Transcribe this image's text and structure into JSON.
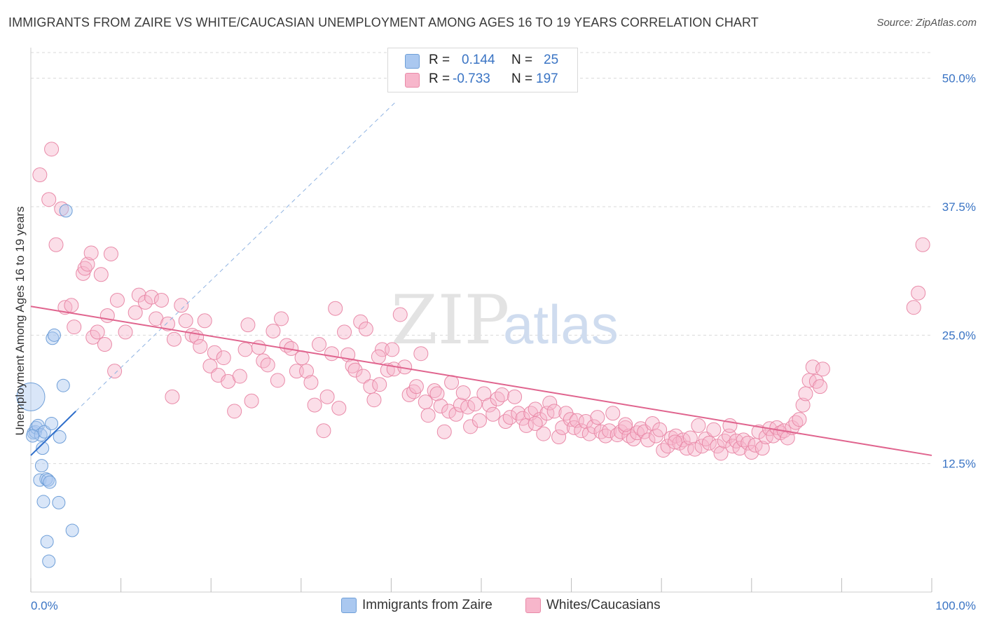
{
  "title": "IMMIGRANTS FROM ZAIRE VS WHITE/CAUCASIAN UNEMPLOYMENT AMONG AGES 16 TO 19 YEARS CORRELATION CHART",
  "source": "Source: ZipAtlas.com",
  "watermark": {
    "zip": "ZIP",
    "atlas": "atlas"
  },
  "legend": {
    "rows": [
      {
        "r_label": "R =",
        "r_value": "0.144",
        "n_label": "N =",
        "n_value": "25",
        "color": "#aac8f0"
      },
      {
        "r_label": "R =",
        "r_value": "-0.733",
        "n_label": "N =",
        "n_value": "197",
        "color": "#f7b6cb"
      }
    ]
  },
  "bottom_legend": [
    {
      "label": "Immigrants from Zaire",
      "color": "#aac8f0"
    },
    {
      "label": "Whites/Caucasians",
      "color": "#f7b6cb"
    }
  ],
  "colors": {
    "blue_fill": "#aac8f0",
    "blue_stroke": "#6f9fd8",
    "blue_line": "#2f6fcb",
    "pink_fill": "#f7b6cb",
    "pink_stroke": "#e98aa8",
    "pink_line": "#e0648e",
    "tick_label": "#3a74c4",
    "grid": "#d9d9d9"
  },
  "chart_data": {
    "type": "scatter",
    "title": "IMMIGRANTS FROM ZAIRE VS WHITE/CAUCASIAN UNEMPLOYMENT AMONG AGES 16 TO 19 YEARS CORRELATION CHART",
    "xlabel": "",
    "ylabel": "Unemployment Among Ages 16 to 19 years",
    "xlim": [
      0,
      100
    ],
    "ylim": [
      0,
      52.5
    ],
    "x_tick_labels": [
      "0.0%",
      "100.0%"
    ],
    "y_ticks": [
      12.5,
      25.0,
      37.5,
      50.0
    ],
    "y_tick_labels": [
      "12.5%",
      "25.0%",
      "37.5%",
      "50.0%"
    ],
    "grid": true,
    "series": [
      {
        "name": "Immigrants from Zaire",
        "r": 0.144,
        "n": 25,
        "trend": {
          "x0": 0,
          "y0": 13.3,
          "x1": 5,
          "y1": 17.6,
          "extended_x1": 40.5,
          "extended_y1": 47.7
        },
        "points": [
          [
            0.0,
            19.0,
            20
          ],
          [
            0.3,
            15.5,
            9
          ],
          [
            0.5,
            15.6,
            9
          ],
          [
            0.6,
            16.0,
            9
          ],
          [
            0.8,
            16.2,
            9
          ],
          [
            1.0,
            10.9,
            9
          ],
          [
            1.1,
            15.3,
            9
          ],
          [
            1.2,
            12.3,
            9
          ],
          [
            1.3,
            14.0,
            9
          ],
          [
            1.4,
            8.8,
            9
          ],
          [
            1.5,
            15.6,
            9
          ],
          [
            1.7,
            11.0,
            9
          ],
          [
            1.8,
            4.9,
            9
          ],
          [
            1.9,
            10.9,
            9
          ],
          [
            2.0,
            3.0,
            9
          ],
          [
            2.1,
            10.7,
            9
          ],
          [
            2.3,
            16.4,
            9
          ],
          [
            2.4,
            24.7,
            9
          ],
          [
            2.6,
            25.0,
            9
          ],
          [
            3.1,
            8.7,
            9
          ],
          [
            3.2,
            15.1,
            9
          ],
          [
            3.6,
            20.1,
            9
          ],
          [
            3.9,
            37.1,
            9
          ],
          [
            4.6,
            6.0,
            9
          ],
          [
            0.2,
            15.2,
            9
          ]
        ]
      },
      {
        "name": "Whites/Caucasians",
        "r": -0.733,
        "n": 197,
        "trend": {
          "x0": 0,
          "y0": 27.8,
          "x1": 100,
          "y1": 13.3
        },
        "points": [
          [
            1.0,
            40.6
          ],
          [
            2.0,
            38.2
          ],
          [
            2.3,
            43.1
          ],
          [
            2.8,
            33.8
          ],
          [
            3.4,
            37.3
          ],
          [
            3.8,
            27.7
          ],
          [
            4.5,
            27.9
          ],
          [
            4.8,
            25.8
          ],
          [
            5.8,
            31.0
          ],
          [
            6.0,
            31.5
          ],
          [
            6.3,
            31.9
          ],
          [
            6.7,
            33.0
          ],
          [
            6.9,
            24.8
          ],
          [
            7.4,
            25.3
          ],
          [
            7.8,
            30.9
          ],
          [
            8.2,
            24.1
          ],
          [
            8.5,
            26.9
          ],
          [
            8.9,
            32.9
          ],
          [
            9.3,
            21.5
          ],
          [
            9.6,
            28.4
          ],
          [
            10.5,
            25.3
          ],
          [
            11.6,
            27.2
          ],
          [
            12.0,
            28.9
          ],
          [
            12.7,
            28.2
          ],
          [
            13.4,
            28.7
          ],
          [
            13.9,
            26.6
          ],
          [
            14.5,
            28.4
          ],
          [
            15.2,
            26.1
          ],
          [
            15.7,
            19.0
          ],
          [
            15.9,
            24.6
          ],
          [
            16.7,
            27.9
          ],
          [
            17.2,
            26.4
          ],
          [
            17.9,
            25.0
          ],
          [
            18.4,
            24.8
          ],
          [
            18.8,
            23.9
          ],
          [
            19.3,
            26.4
          ],
          [
            19.9,
            22.0
          ],
          [
            20.4,
            23.3
          ],
          [
            20.8,
            21.1
          ],
          [
            21.4,
            22.8
          ],
          [
            21.9,
            20.5
          ],
          [
            22.6,
            17.6
          ],
          [
            23.2,
            21.0
          ],
          [
            23.8,
            23.6
          ],
          [
            24.1,
            26.0
          ],
          [
            24.5,
            18.6
          ],
          [
            25.3,
            23.8
          ],
          [
            25.8,
            22.5
          ],
          [
            26.3,
            22.1
          ],
          [
            26.9,
            25.4
          ],
          [
            27.4,
            20.6
          ],
          [
            27.8,
            26.6
          ],
          [
            28.4,
            24.0
          ],
          [
            28.9,
            23.7
          ],
          [
            29.5,
            21.5
          ],
          [
            30.1,
            22.8
          ],
          [
            30.6,
            21.5
          ],
          [
            31.1,
            20.4
          ],
          [
            31.5,
            18.2
          ],
          [
            32.0,
            24.1
          ],
          [
            32.5,
            15.7
          ],
          [
            32.9,
            19.0
          ],
          [
            33.4,
            23.2
          ],
          [
            33.8,
            27.6
          ],
          [
            34.2,
            17.9
          ],
          [
            34.8,
            25.3
          ],
          [
            35.2,
            23.1
          ],
          [
            35.7,
            22.0
          ],
          [
            36.0,
            21.6
          ],
          [
            36.6,
            26.3
          ],
          [
            36.9,
            21.0
          ],
          [
            37.2,
            25.6
          ],
          [
            37.7,
            20.0
          ],
          [
            38.1,
            18.7
          ],
          [
            38.7,
            20.2
          ],
          [
            39.0,
            23.6
          ],
          [
            39.6,
            21.6
          ],
          [
            40.1,
            23.6
          ],
          [
            40.3,
            21.7
          ],
          [
            41.0,
            27.0
          ],
          [
            41.5,
            21.9
          ],
          [
            42.0,
            19.2
          ],
          [
            42.5,
            19.5
          ],
          [
            42.8,
            20.0
          ],
          [
            43.3,
            23.2
          ],
          [
            43.8,
            18.5
          ],
          [
            44.1,
            17.2
          ],
          [
            44.8,
            19.6
          ],
          [
            45.1,
            19.3
          ],
          [
            45.5,
            18.1
          ],
          [
            45.9,
            15.6
          ],
          [
            46.4,
            17.6
          ],
          [
            46.7,
            20.4
          ],
          [
            47.2,
            17.3
          ],
          [
            47.7,
            18.2
          ],
          [
            48.0,
            19.4
          ],
          [
            48.5,
            18.0
          ],
          [
            48.8,
            16.1
          ],
          [
            49.3,
            18.3
          ],
          [
            49.8,
            16.7
          ],
          [
            50.3,
            19.3
          ],
          [
            50.9,
            18.2
          ],
          [
            51.3,
            17.3
          ],
          [
            51.8,
            18.8
          ],
          [
            52.3,
            19.2
          ],
          [
            52.7,
            16.6
          ],
          [
            53.2,
            17.0
          ],
          [
            53.7,
            19.0
          ],
          [
            54.1,
            17.4
          ],
          [
            54.6,
            16.9
          ],
          [
            55.0,
            16.2
          ],
          [
            55.5,
            17.4
          ],
          [
            56.0,
            17.8
          ],
          [
            56.5,
            16.8
          ],
          [
            56.9,
            15.4
          ],
          [
            57.3,
            17.4
          ],
          [
            57.6,
            18.4
          ],
          [
            58.1,
            17.6
          ],
          [
            58.6,
            15.1
          ],
          [
            59.0,
            16.0
          ],
          [
            59.4,
            17.4
          ],
          [
            59.9,
            16.8
          ],
          [
            60.3,
            16.0
          ],
          [
            60.6,
            16.7
          ],
          [
            61.1,
            15.7
          ],
          [
            61.6,
            16.6
          ],
          [
            62.0,
            15.4
          ],
          [
            62.5,
            16.1
          ],
          [
            62.9,
            17.0
          ],
          [
            63.3,
            15.6
          ],
          [
            63.8,
            15.2
          ],
          [
            64.2,
            15.7
          ],
          [
            64.6,
            17.4
          ],
          [
            65.1,
            15.3
          ],
          [
            65.5,
            15.6
          ],
          [
            66.0,
            16.0
          ],
          [
            66.4,
            15.2
          ],
          [
            66.9,
            14.9
          ],
          [
            67.3,
            15.5
          ],
          [
            67.7,
            15.9
          ],
          [
            68.1,
            15.6
          ],
          [
            68.5,
            14.8
          ],
          [
            69.0,
            16.4
          ],
          [
            69.4,
            15.2
          ],
          [
            69.8,
            15.8
          ],
          [
            70.2,
            13.8
          ],
          [
            70.7,
            14.2
          ],
          [
            71.1,
            15.0
          ],
          [
            71.6,
            15.2
          ],
          [
            72.0,
            14.5
          ],
          [
            72.4,
            14.8
          ],
          [
            72.8,
            14.0
          ],
          [
            73.2,
            15.0
          ],
          [
            73.7,
            13.9
          ],
          [
            74.1,
            16.2
          ],
          [
            74.5,
            14.2
          ],
          [
            74.9,
            14.9
          ],
          [
            75.3,
            14.5
          ],
          [
            75.8,
            15.8
          ],
          [
            76.2,
            14.2
          ],
          [
            76.6,
            13.5
          ],
          [
            77.0,
            14.7
          ],
          [
            77.5,
            15.2
          ],
          [
            77.9,
            14.2
          ],
          [
            78.3,
            14.7
          ],
          [
            78.7,
            14.0
          ],
          [
            79.1,
            14.8
          ],
          [
            79.6,
            14.5
          ],
          [
            80.0,
            13.6
          ],
          [
            80.4,
            14.3
          ],
          [
            80.8,
            15.6
          ],
          [
            81.2,
            14.0
          ],
          [
            81.6,
            15.1
          ],
          [
            82.0,
            15.9
          ],
          [
            82.4,
            15.2
          ],
          [
            82.8,
            16.0
          ],
          [
            83.2,
            15.5
          ],
          [
            83.6,
            15.7
          ],
          [
            84.0,
            15.0
          ],
          [
            84.5,
            16.0
          ],
          [
            84.9,
            16.5
          ],
          [
            85.3,
            16.8
          ],
          [
            85.7,
            18.2
          ],
          [
            86.0,
            19.3
          ],
          [
            86.4,
            20.6
          ],
          [
            86.8,
            21.9
          ],
          [
            87.2,
            20.5
          ],
          [
            87.6,
            20.0
          ],
          [
            87.9,
            21.7
          ],
          [
            98.0,
            27.7
          ],
          [
            98.5,
            29.1
          ],
          [
            99.0,
            33.8
          ],
          [
            38.6,
            22.9
          ],
          [
            56.0,
            16.4
          ],
          [
            66.0,
            16.3
          ],
          [
            71.5,
            14.6
          ],
          [
            77.6,
            16.2
          ]
        ]
      }
    ]
  }
}
